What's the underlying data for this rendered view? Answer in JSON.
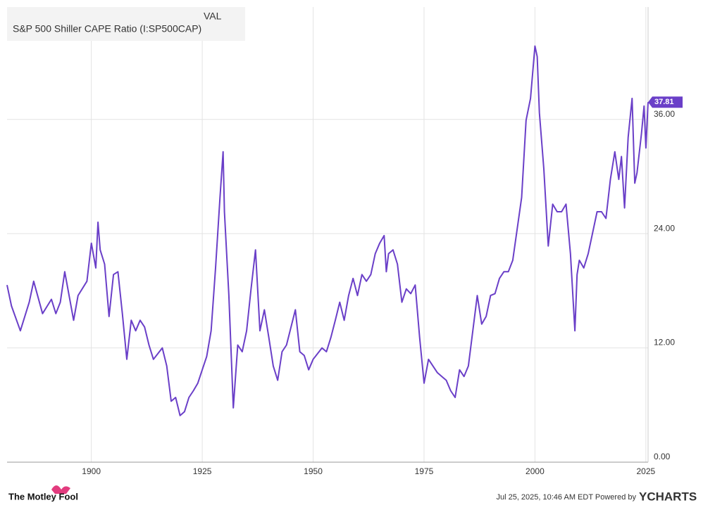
{
  "chart_data": {
    "type": "line",
    "value_header": "VAL",
    "x": [
      1881,
      1882,
      1884,
      1886,
      1887,
      1889,
      1891,
      1892,
      1893,
      1894,
      1896,
      1897,
      1899,
      1900,
      1901,
      1901.5,
      1902,
      1903,
      1904,
      1905,
      1906,
      1907,
      1908,
      1909,
      1910,
      1911,
      1912,
      1913,
      1914,
      1916,
      1917,
      1918,
      1919,
      1920,
      1921,
      1922,
      1923,
      1924,
      1925,
      1926,
      1927,
      1928,
      1929,
      1929.7,
      1930,
      1931,
      1932,
      1933,
      1934,
      1935,
      1936,
      1937,
      1938,
      1939,
      1940,
      1941,
      1942,
      1943,
      1944,
      1946,
      1947,
      1948,
      1949,
      1950,
      1952,
      1953,
      1954,
      1955,
      1956,
      1957,
      1958,
      1959,
      1960,
      1961,
      1962,
      1963,
      1964,
      1965,
      1966,
      1966.5,
      1967,
      1968,
      1969,
      1970,
      1971,
      1972,
      1973,
      1974,
      1975,
      1976,
      1977,
      1978,
      1979,
      1980,
      1981,
      1982,
      1983,
      1984,
      1985,
      1986,
      1987,
      1988,
      1989,
      1990,
      1991,
      1992,
      1993,
      1994,
      1995,
      1996,
      1997,
      1998,
      1999,
      2000,
      2000.5,
      2001,
      2002,
      2003,
      2004,
      2005,
      2006,
      2007,
      2008,
      2009,
      2009.5,
      2010,
      2011,
      2012,
      2013,
      2014,
      2015,
      2016,
      2017,
      2018,
      2018.9,
      2019.5,
      2020.2,
      2021,
      2021.9,
      2022.5,
      2023,
      2024,
      2024.6,
      2025,
      2025.5
    ],
    "series": [
      {
        "name": "S&P 500 Shiller CAPE Ratio (I:SP500CAP)",
        "color": "#6a3fc8",
        "values": [
          18.6,
          16.4,
          13.8,
          16.8,
          19,
          15.6,
          17.1,
          15.6,
          16.8,
          20,
          14.9,
          17.5,
          19,
          23,
          20.4,
          25.2,
          22.3,
          20.8,
          15.3,
          19.7,
          20,
          15.6,
          10.8,
          14.9,
          13.8,
          14.9,
          14.2,
          12.3,
          10.8,
          12,
          10.1,
          6.4,
          6.8,
          4.9,
          5.3,
          6.8,
          7.5,
          8.3,
          9.7,
          11.1,
          13.8,
          20.4,
          27.8,
          32.6,
          26.3,
          17.5,
          5.7,
          12.3,
          11.6,
          13.8,
          18.2,
          22.3,
          13.8,
          16,
          13.1,
          10.1,
          8.6,
          11.6,
          12.3,
          16,
          11.6,
          11.2,
          9.7,
          10.8,
          12,
          11.6,
          13.1,
          14.9,
          16.8,
          14.9,
          17.5,
          19.3,
          17.5,
          19.7,
          19,
          19.7,
          21.9,
          23,
          23.8,
          20,
          21.9,
          22.3,
          20.8,
          16.8,
          18.2,
          17.7,
          18.6,
          13.1,
          8.3,
          10.8,
          10.1,
          9.4,
          9,
          8.6,
          7.5,
          6.8,
          9.7,
          9,
          10.1,
          13.8,
          17.5,
          14.5,
          15.3,
          17.5,
          17.7,
          19.3,
          20,
          20,
          21.2,
          24.5,
          27.8,
          35.9,
          38.2,
          43.7,
          42.6,
          36.7,
          30.8,
          22.7,
          27.1,
          26.3,
          26.3,
          27.1,
          21.9,
          13.8,
          19.7,
          21.2,
          20.4,
          21.9,
          24.1,
          26.3,
          26.3,
          25.6,
          29.7,
          32.6,
          29.7,
          32.1,
          26.7,
          34.1,
          38.2,
          29.3,
          30.4,
          34.5,
          37.4,
          33,
          37.81
        ]
      }
    ],
    "xlim": [
      1881,
      2025.5
    ],
    "xticks": [
      1900,
      1925,
      1950,
      1975,
      2000,
      2025
    ],
    "ylim": [
      0,
      47.8
    ],
    "yticks": [
      {
        "value": 0,
        "label": "0.00"
      },
      {
        "value": 12,
        "label": "12.00"
      },
      {
        "value": 24,
        "label": "24.00"
      },
      {
        "value": 36,
        "label": "36.00"
      }
    ],
    "grid": true,
    "source_note": "Jul 25, 2025, 10:46 AM EDT Powered by",
    "brand": "YCHARTS",
    "logo_text": "The Motley Fool"
  }
}
